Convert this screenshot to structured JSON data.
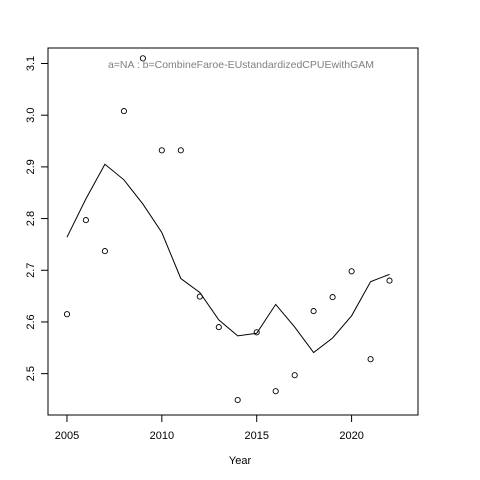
{
  "chart_data": {
    "type": "scatter",
    "title": "",
    "xlabel": "Year",
    "ylabel": "",
    "annotation": "a=NA  :  b=CombineFaroe-EUstandardizedCPUEwithGAM",
    "xlim": [
      2004,
      2023.5
    ],
    "ylim": [
      2.42,
      3.13
    ],
    "x_ticks": [
      2005,
      2010,
      2015,
      2020
    ],
    "x_tick_labels": [
      "2005",
      "2010",
      "2015",
      "2020"
    ],
    "y_ticks": [
      2.5,
      2.6,
      2.7,
      2.8,
      2.9,
      3.0,
      3.1
    ],
    "y_tick_labels": [
      "2.5",
      "2.6",
      "2.7",
      "2.8",
      "2.9",
      "3.0",
      "3.1"
    ],
    "grid": false,
    "series": [
      {
        "type": "scatter",
        "marker": "open-circle",
        "x": [
          2005,
          2006,
          2007,
          2008,
          2009,
          2010,
          2011,
          2012,
          2013,
          2014,
          2015,
          2016,
          2017,
          2018,
          2019,
          2020,
          2021,
          2022
        ],
        "y": [
          2.615,
          2.797,
          2.737,
          3.008,
          3.11,
          2.932,
          2.932,
          2.649,
          2.59,
          2.449,
          2.58,
          2.466,
          2.497,
          2.621,
          2.648,
          2.698,
          2.528,
          2.68
        ]
      },
      {
        "type": "line",
        "x": [
          2005,
          2006,
          2007,
          2008,
          2009,
          2010,
          2011,
          2012,
          2013,
          2014,
          2015,
          2016,
          2017,
          2018,
          2019,
          2020,
          2021,
          2022
        ],
        "y": [
          2.764,
          2.838,
          2.905,
          2.875,
          2.828,
          2.773,
          2.684,
          2.657,
          2.604,
          2.573,
          2.578,
          2.634,
          2.59,
          2.541,
          2.569,
          2.612,
          2.678,
          2.692
        ]
      }
    ],
    "colors": {
      "points": "#000000",
      "line": "#000000",
      "frame": "#000000",
      "annotation": "#808080"
    }
  }
}
